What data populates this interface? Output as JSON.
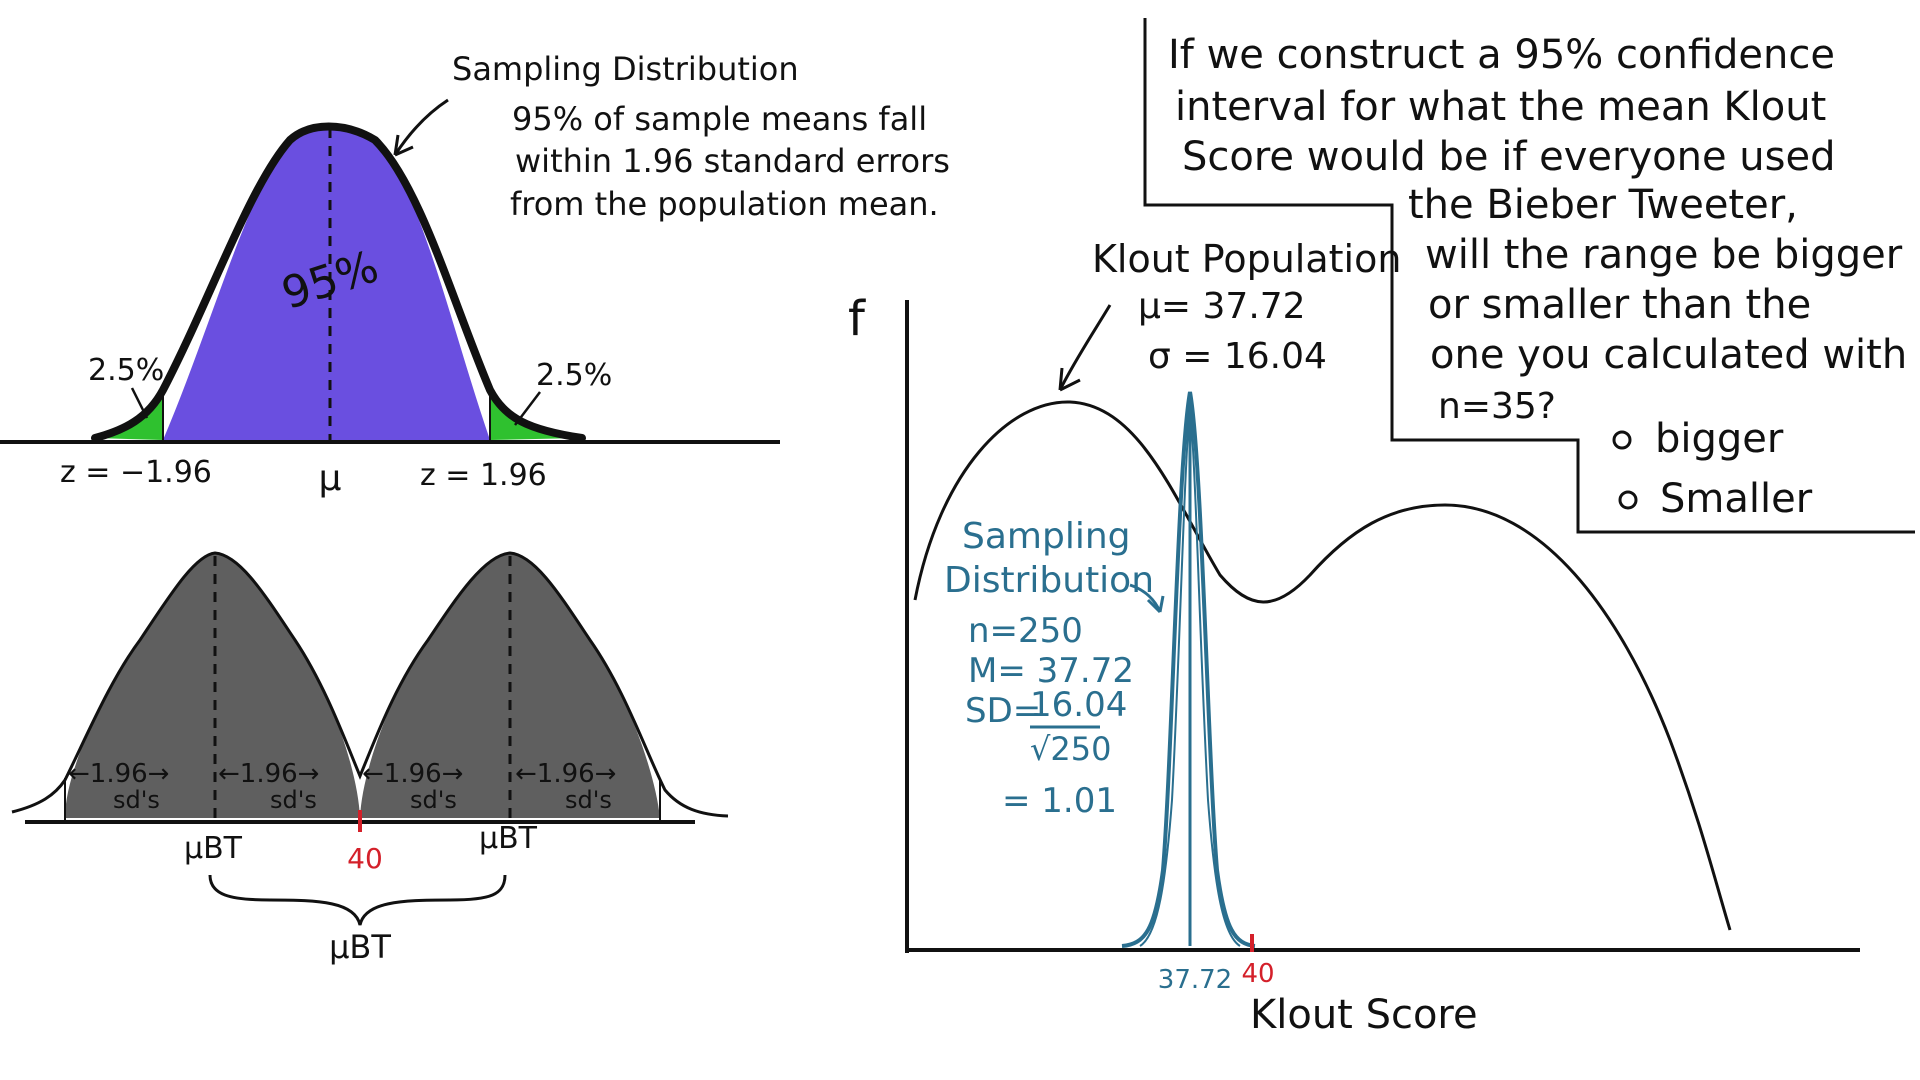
{
  "top_left": {
    "title": "Sampling Distribution",
    "note_lines": [
      "95% of sample means fall",
      "within 1.96 standard errors",
      "from the population mean."
    ],
    "center_pct": "95%",
    "left_tail_pct": "2.5%",
    "right_tail_pct": "2.5%",
    "z_left": "z = −1.96",
    "z_right": "z = 1.96",
    "mu": "μ",
    "colors": {
      "body": "#6a4fe0",
      "tail": "#2fc12f"
    }
  },
  "bottom_left": {
    "label_196": "←1.96→",
    "label_sds": "sd's",
    "mu_bt": "μBT",
    "forty": "40",
    "brace_label": "μBT",
    "colors": {
      "body": "#5f5f5f"
    }
  },
  "right": {
    "y_axis_label": "f",
    "x_axis_label": "Klout Score",
    "population_title": "Klout Population",
    "population_mu": "μ= 37.72",
    "population_sigma": "σ = 16.04",
    "sampling_title_1": "Sampling",
    "sampling_title_2": "Distribution",
    "n_line": "n=250",
    "m_line": "M= 37.72",
    "sd_line": "SD=",
    "sd_num": "16.04",
    "sd_den": "√250",
    "eq_line": "= 1.01",
    "tick_mean": "37.72",
    "tick_40": "40",
    "colors": {
      "sampling": "#2a6f8f",
      "forty": "#d4202a"
    }
  },
  "question": {
    "lines": [
      "If we construct a 95% confidence",
      "interval for what the mean Klout",
      "Score would be if everyone used",
      "the Bieber Tweeter,",
      "will the range be bigger",
      "or smaller than the",
      "one you calculated with",
      "n=35?"
    ],
    "options": [
      "bigger",
      "Smaller"
    ]
  }
}
